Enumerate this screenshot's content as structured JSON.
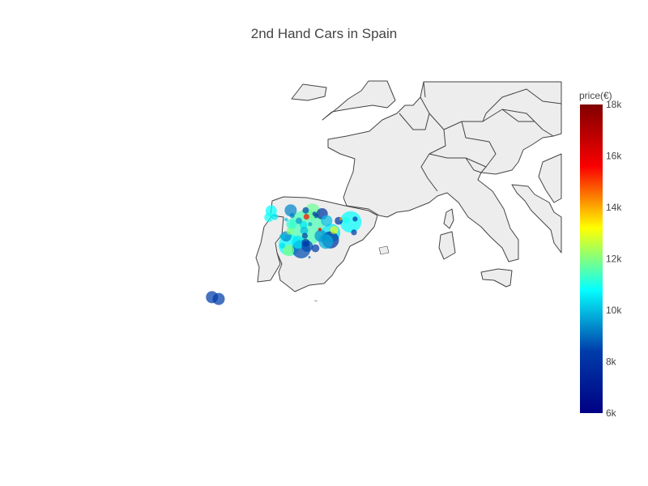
{
  "title": "2nd Hand Cars in Spain",
  "colorbar": {
    "title": "price(€)",
    "min": 6000,
    "max": 18000,
    "ticks": [
      {
        "value": 18000,
        "label": "18k"
      },
      {
        "value": 16000,
        "label": "16k"
      },
      {
        "value": 14000,
        "label": "14k"
      },
      {
        "value": 12000,
        "label": "12k"
      },
      {
        "value": 10000,
        "label": "10k"
      },
      {
        "value": 8000,
        "label": "8k"
      },
      {
        "value": 6000,
        "label": "6k"
      }
    ],
    "colorscale": [
      "#000083",
      "#003caa",
      "#05ffff",
      "#ffff00",
      "#fa0000",
      "#800000"
    ]
  },
  "chart_data": {
    "type": "scatter-geo bubble",
    "title": "2nd Hand Cars in Spain",
    "color_variable": "price(€)",
    "color_range": [
      6000,
      18000
    ],
    "points": [
      {
        "lon": -8.4,
        "lat": 43.3,
        "price": 10800,
        "count": 30
      },
      {
        "lon": -7.9,
        "lat": 42.3,
        "price": 10500,
        "count": 10
      },
      {
        "lon": -8.7,
        "lat": 42.2,
        "price": 10900,
        "count": 20
      },
      {
        "lon": -5.8,
        "lat": 43.4,
        "price": 9300,
        "count": 35
      },
      {
        "lon": -3.8,
        "lat": 43.4,
        "price": 8500,
        "count": 10
      },
      {
        "lon": -2.9,
        "lat": 43.2,
        "price": 11800,
        "count": 60
      },
      {
        "lon": -2.6,
        "lat": 42.8,
        "price": 8200,
        "count": 5
      },
      {
        "lon": -1.6,
        "lat": 42.8,
        "price": 8000,
        "count": 30
      },
      {
        "lon": -5.6,
        "lat": 42.5,
        "price": 9200,
        "count": 6
      },
      {
        "lon": -4.7,
        "lat": 41.6,
        "price": 9500,
        "count": 10
      },
      {
        "lon": -3.7,
        "lat": 42.3,
        "price": 15500,
        "count": 8
      },
      {
        "lon": -2.4,
        "lat": 42.4,
        "price": 8300,
        "count": 4
      },
      {
        "lon": 0.9,
        "lat": 41.9,
        "price": 14200,
        "count": 2
      },
      {
        "lon": 1.6,
        "lat": 41.7,
        "price": 11000,
        "count": 10
      },
      {
        "lon": 2.2,
        "lat": 41.4,
        "price": 10800,
        "count": 110
      },
      {
        "lon": 2.8,
        "lat": 41.9,
        "price": 8300,
        "count": 6
      },
      {
        "lon": 0.6,
        "lat": 41.6,
        "price": 8100,
        "count": 15
      },
      {
        "lon": -1.0,
        "lat": 41.6,
        "price": 10000,
        "count": 30
      },
      {
        "lon": -5.7,
        "lat": 41.0,
        "price": 11200,
        "count": 25
      },
      {
        "lon": -6.4,
        "lat": 41.8,
        "price": 10000,
        "count": 3
      },
      {
        "lon": -3.7,
        "lat": 40.4,
        "price": 11500,
        "count": 300
      },
      {
        "lon": -4.1,
        "lat": 40.9,
        "price": 10500,
        "count": 15
      },
      {
        "lon": -4.0,
        "lat": 39.9,
        "price": 10000,
        "count": 15
      },
      {
        "lon": -5.9,
        "lat": 39.8,
        "price": 12000,
        "count": 12
      },
      {
        "lon": -3.2,
        "lat": 41.0,
        "price": 9600,
        "count": 4
      },
      {
        "lon": -1.9,
        "lat": 40.1,
        "price": 16000,
        "count": 3
      },
      {
        "lon": 0.0,
        "lat": 40.0,
        "price": 13000,
        "count": 15
      },
      {
        "lon": -0.4,
        "lat": 39.5,
        "price": 10500,
        "count": 80
      },
      {
        "lon": -0.5,
        "lat": 38.3,
        "price": 7800,
        "count": 70
      },
      {
        "lon": 2.65,
        "lat": 39.6,
        "price": 8300,
        "count": 8
      },
      {
        "lon": -1.1,
        "lat": 38.0,
        "price": 9800,
        "count": 50
      },
      {
        "lon": -1.8,
        "lat": 39.0,
        "price": 9500,
        "count": 35
      },
      {
        "lon": -3.9,
        "lat": 39.0,
        "price": 8300,
        "count": 8
      },
      {
        "lon": -6.4,
        "lat": 38.9,
        "price": 9300,
        "count": 25
      },
      {
        "lon": -6.9,
        "lat": 38.9,
        "price": 10000,
        "count": 8
      },
      {
        "lon": -4.8,
        "lat": 37.9,
        "price": 10500,
        "count": 40
      },
      {
        "lon": -3.8,
        "lat": 37.8,
        "price": 8100,
        "count": 15
      },
      {
        "lon": -5.98,
        "lat": 37.4,
        "price": 10800,
        "count": 110
      },
      {
        "lon": -6.9,
        "lat": 37.3,
        "price": 10400,
        "count": 8
      },
      {
        "lon": -6.1,
        "lat": 36.5,
        "price": 12000,
        "count": 30
      },
      {
        "lon": -4.4,
        "lat": 36.7,
        "price": 8600,
        "count": 80
      },
      {
        "lon": -3.6,
        "lat": 37.2,
        "price": 8600,
        "count": 30
      },
      {
        "lon": -2.5,
        "lat": 36.85,
        "price": 8400,
        "count": 15
      },
      {
        "lon": -16.3,
        "lat": 28.4,
        "price": 8400,
        "count": 35
      },
      {
        "lon": -15.4,
        "lat": 28.1,
        "price": 8400,
        "count": 35
      },
      {
        "lon": -3.3,
        "lat": 35.3,
        "price": 9000,
        "count": 1
      }
    ]
  }
}
